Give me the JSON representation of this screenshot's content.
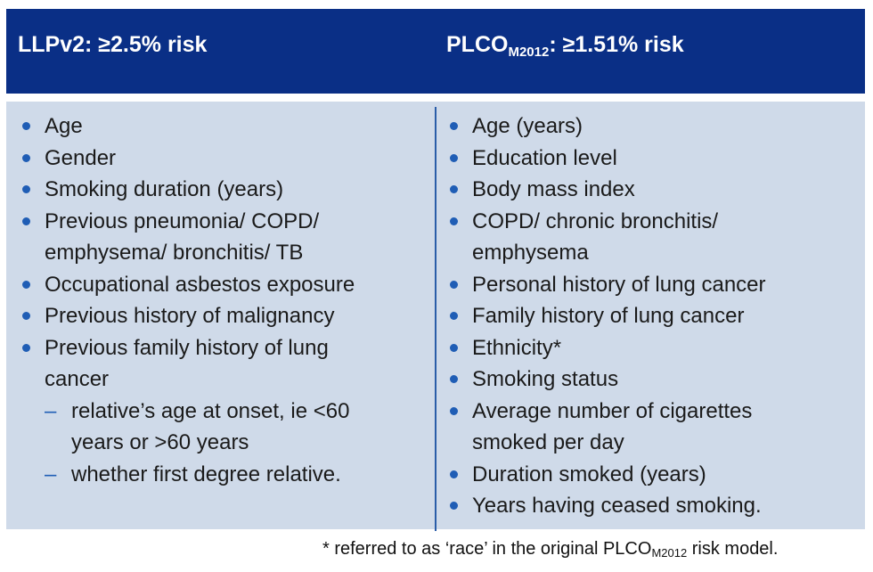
{
  "header": {
    "left": {
      "title": "LLPv2: ≥2.5% risk"
    },
    "right": {
      "prefix": "PLCO",
      "subscript": "M2012",
      "suffix": ": ≥1.51% risk"
    }
  },
  "left": {
    "items": [
      "Age",
      "Gender",
      "Smoking duration (years)",
      [
        "Previous pneumonia/ COPD/",
        "emphysema/ bronchitis/ TB"
      ],
      "Occupational asbestos exposure",
      "Previous history of malignancy",
      [
        "Previous family history of lung",
        "cancer"
      ]
    ],
    "subitems": [
      [
        "relative’s age at onset, ie <60",
        "years or >60 years"
      ],
      "whether first degree relative."
    ]
  },
  "right": {
    "items": [
      "Age (years)",
      "Education level",
      "Body mass index",
      [
        "COPD/ chronic bronchitis/",
        "emphysema"
      ],
      "Personal history of lung cancer",
      "Family history of lung cancer",
      "Ethnicity*",
      "Smoking status",
      [
        "Average number of cigarettes",
        "smoked per day"
      ],
      "Duration smoked (years)",
      "Years having ceased smoking."
    ]
  },
  "footnote": {
    "prefix": "* referred to as ‘race’ in the original PLCO",
    "subscript": "M2012",
    "suffix": " risk model."
  },
  "colors": {
    "header_bg": "#0a2f86",
    "body_bg": "#cfdae9",
    "bullet": "#1f5db5",
    "divider": "#2a5da8"
  },
  "icons": {
    "bullet": "bullet-dot-icon",
    "dash": "dash-icon"
  }
}
